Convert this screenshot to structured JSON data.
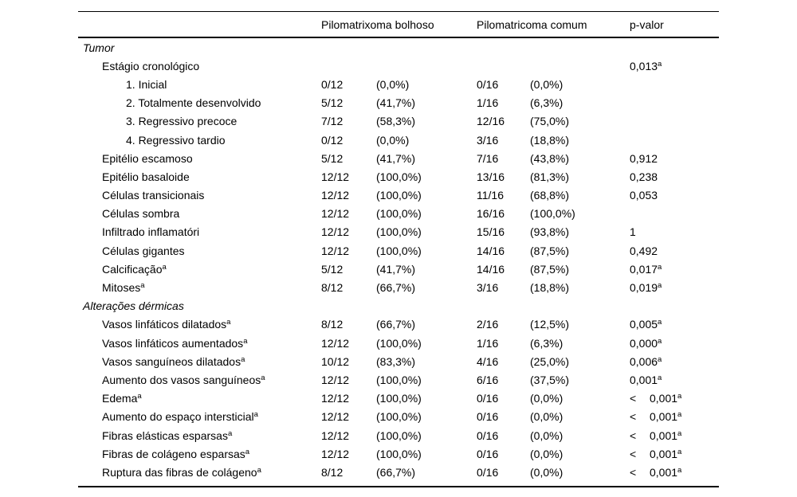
{
  "table": {
    "headers": {
      "col1": "Pilomatrixoma bolhoso",
      "col2": "Pilomatricoma comum",
      "p": "p-valor"
    },
    "rows": [
      {
        "label": "Tumor",
        "label_sup": "",
        "indent": 0,
        "section": true,
        "c1n": "",
        "c1p": "",
        "c2n": "",
        "c2p": "",
        "p_prefix": "",
        "p": "",
        "p_sup": ""
      },
      {
        "label": "Estágio cronológico",
        "label_sup": "",
        "indent": 1,
        "section": false,
        "c1n": "",
        "c1p": "",
        "c2n": "",
        "c2p": "",
        "p_prefix": "",
        "p": "0,013",
        "p_sup": "a"
      },
      {
        "label": "1. Inicial",
        "label_sup": "",
        "indent": 2,
        "section": false,
        "c1n": "0/12",
        "c1p": "(0,0%)",
        "c2n": "0/16",
        "c2p": "(0,0%)",
        "p_prefix": "",
        "p": "",
        "p_sup": ""
      },
      {
        "label": "2. Totalmente desenvolvido",
        "label_sup": "",
        "indent": 2,
        "section": false,
        "c1n": "5/12",
        "c1p": "(41,7%)",
        "c2n": "1/16",
        "c2p": "(6,3%)",
        "p_prefix": "",
        "p": "",
        "p_sup": ""
      },
      {
        "label": "3. Regressivo precoce",
        "label_sup": "",
        "indent": 2,
        "section": false,
        "c1n": "7/12",
        "c1p": "(58,3%)",
        "c2n": "12/16",
        "c2p": "(75,0%)",
        "p_prefix": "",
        "p": "",
        "p_sup": ""
      },
      {
        "label": "4. Regressivo tardio",
        "label_sup": "",
        "indent": 2,
        "section": false,
        "c1n": "0/12",
        "c1p": "(0,0%)",
        "c2n": "3/16",
        "c2p": "(18,8%)",
        "p_prefix": "",
        "p": "",
        "p_sup": ""
      },
      {
        "label": "Epitélio escamoso",
        "label_sup": "",
        "indent": 1,
        "section": false,
        "c1n": "5/12",
        "c1p": "(41,7%)",
        "c2n": "7/16",
        "c2p": "(43,8%)",
        "p_prefix": "",
        "p": "0,912",
        "p_sup": ""
      },
      {
        "label": "Epitélio basaloide",
        "label_sup": "",
        "indent": 1,
        "section": false,
        "c1n": "12/12",
        "c1p": "(100,0%)",
        "c2n": "13/16",
        "c2p": "(81,3%)",
        "p_prefix": "",
        "p": "0,238",
        "p_sup": ""
      },
      {
        "label": "Células transicionais",
        "label_sup": "",
        "indent": 1,
        "section": false,
        "c1n": "12/12",
        "c1p": "(100,0%)",
        "c2n": "11/16",
        "c2p": "(68,8%)",
        "p_prefix": "",
        "p": "0,053",
        "p_sup": ""
      },
      {
        "label": "Células sombra",
        "label_sup": "",
        "indent": 1,
        "section": false,
        "c1n": "12/12",
        "c1p": "(100,0%)",
        "c2n": "16/16",
        "c2p": "(100,0%)",
        "p_prefix": "",
        "p": "",
        "p_sup": ""
      },
      {
        "label": "Infiltrado inflamatóri",
        "label_sup": "",
        "indent": 1,
        "section": false,
        "c1n": "12/12",
        "c1p": "(100,0%)",
        "c2n": "15/16",
        "c2p": "(93,8%)",
        "p_prefix": "",
        "p": "1",
        "p_sup": ""
      },
      {
        "label": "Células gigantes",
        "label_sup": "",
        "indent": 1,
        "section": false,
        "c1n": "12/12",
        "c1p": "(100,0%)",
        "c2n": "14/16",
        "c2p": "(87,5%)",
        "p_prefix": "",
        "p": "0,492",
        "p_sup": ""
      },
      {
        "label": "Calcificação",
        "label_sup": "a",
        "indent": 1,
        "section": false,
        "c1n": "5/12",
        "c1p": "(41,7%)",
        "c2n": "14/16",
        "c2p": "(87,5%)",
        "p_prefix": "",
        "p": "0,017",
        "p_sup": "a"
      },
      {
        "label": "Mitoses",
        "label_sup": "a",
        "indent": 1,
        "section": false,
        "c1n": "8/12",
        "c1p": "(66,7%)",
        "c2n": "3/16",
        "c2p": "(18,8%)",
        "p_prefix": "",
        "p": "0,019",
        "p_sup": "a"
      },
      {
        "label": "Alterações dérmicas",
        "label_sup": "",
        "indent": 0,
        "section": true,
        "c1n": "",
        "c1p": "",
        "c2n": "",
        "c2p": "",
        "p_prefix": "",
        "p": "",
        "p_sup": ""
      },
      {
        "label": "Vasos linfáticos dilatados",
        "label_sup": "a",
        "indent": 1,
        "section": false,
        "c1n": "8/12",
        "c1p": "(66,7%)",
        "c2n": "2/16",
        "c2p": "(12,5%)",
        "p_prefix": "",
        "p": "0,005",
        "p_sup": "a"
      },
      {
        "label": "Vasos linfáticos aumentados",
        "label_sup": "a",
        "indent": 1,
        "section": false,
        "c1n": "12/12",
        "c1p": "(100,0%)",
        "c2n": "1/16",
        "c2p": "(6,3%)",
        "p_prefix": "",
        "p": "0,000",
        "p_sup": "a"
      },
      {
        "label": "Vasos sanguíneos dilatados",
        "label_sup": "a",
        "indent": 1,
        "section": false,
        "c1n": "10/12",
        "c1p": "(83,3%)",
        "c2n": "4/16",
        "c2p": "(25,0%)",
        "p_prefix": "",
        "p": "0,006",
        "p_sup": "a"
      },
      {
        "label": "Aumento dos vasos sanguíneos",
        "label_sup": "a",
        "indent": 1,
        "section": false,
        "c1n": "12/12",
        "c1p": "(100,0%)",
        "c2n": "6/16",
        "c2p": "(37,5%)",
        "p_prefix": "",
        "p": "0,001",
        "p_sup": "a"
      },
      {
        "label": "Edema",
        "label_sup": "a",
        "indent": 1,
        "section": false,
        "c1n": "12/12",
        "c1p": "(100,0%)",
        "c2n": "0/16",
        "c2p": "(0,0%)",
        "p_prefix": "<",
        "p": "0,001",
        "p_sup": "a"
      },
      {
        "label": "Aumento do espaço intersticial",
        "label_sup": "a",
        "indent": 1,
        "section": false,
        "c1n": "12/12",
        "c1p": "(100,0%)",
        "c2n": "0/16",
        "c2p": "(0,0%)",
        "p_prefix": "<",
        "p": "0,001",
        "p_sup": "a"
      },
      {
        "label": "Fibras elásticas esparsas",
        "label_sup": "a",
        "indent": 1,
        "section": false,
        "c1n": "12/12",
        "c1p": "(100,0%)",
        "c2n": "0/16",
        "c2p": "(0,0%)",
        "p_prefix": "<",
        "p": "0,001",
        "p_sup": "a"
      },
      {
        "label": "Fibras de colágeno esparsas",
        "label_sup": "a",
        "indent": 1,
        "section": false,
        "c1n": "12/12",
        "c1p": "(100,0%)",
        "c2n": "0/16",
        "c2p": "(0,0%)",
        "p_prefix": "<",
        "p": "0,001",
        "p_sup": "a"
      },
      {
        "label": "Ruptura das fibras de colágeno",
        "label_sup": "a",
        "indent": 1,
        "section": false,
        "c1n": "8/12",
        "c1p": "(66,7%)",
        "c2n": "0/16",
        "c2p": "(0,0%)",
        "p_prefix": "<",
        "p": "0,001",
        "p_sup": "a"
      }
    ]
  }
}
